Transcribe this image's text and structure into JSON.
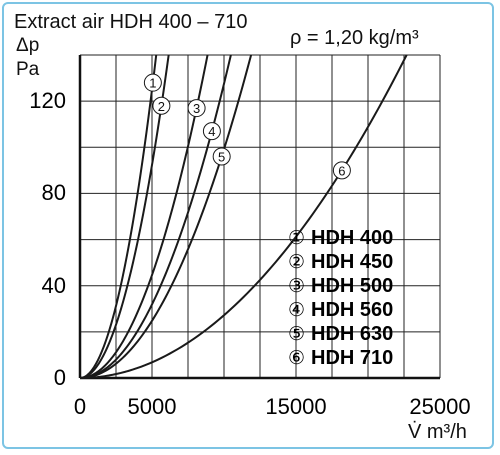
{
  "chart_data": {
    "type": "line",
    "title": "Extract air HDH 400 – 710",
    "annotation": "ρ = 1,20 kg/m³",
    "ylabel": "Δp",
    "ylabel_unit": "Pa",
    "xlabel": "V̇ m³/h",
    "xlim": [
      0,
      25000
    ],
    "ylim": [
      0,
      140
    ],
    "xticks": [
      "0",
      "5000",
      "15000",
      "25000"
    ],
    "xtick_values": [
      0,
      5000,
      15000,
      25000
    ],
    "yticks": [
      "0",
      "40",
      "80",
      "120"
    ],
    "ytick_values": [
      0,
      40,
      80,
      120
    ],
    "grid": true,
    "legend_position": "bottom-right",
    "line_color": "#1a1a1a",
    "grid_color": "#222222",
    "series": [
      {
        "name": "HDH 400",
        "marker": "①",
        "k": 120,
        "x_at_k": 4900,
        "label_at_y": 128
      },
      {
        "name": "HDH 450",
        "marker": "②",
        "k": 120,
        "x_at_k": 5700,
        "label_at_y": 118
      },
      {
        "name": "HDH 500",
        "marker": "③",
        "k": 120,
        "x_at_k": 8200,
        "label_at_y": 117
      },
      {
        "name": "HDH 560",
        "marker": "④",
        "k": 120,
        "x_at_k": 9700,
        "label_at_y": 107
      },
      {
        "name": "HDH 630",
        "marker": "⑤",
        "k": 120,
        "x_at_k": 11000,
        "label_at_y": 96
      },
      {
        "name": "HDH 710",
        "marker": "⑥",
        "k": 120,
        "x_at_k": 21000,
        "label_at_y": 90
      }
    ]
  }
}
